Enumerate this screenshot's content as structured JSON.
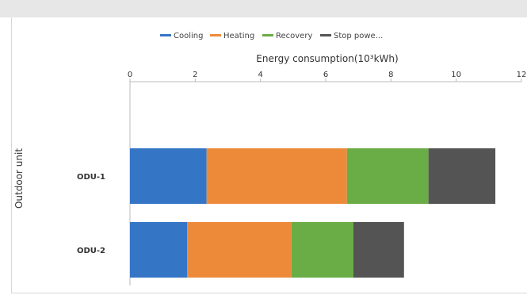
{
  "chart_data": {
    "type": "bar",
    "orientation": "horizontal",
    "stacked": true,
    "xlabel": "Energy consumption(10³kWh)",
    "ylabel": "Outdoor unit",
    "xlim": [
      0,
      12
    ],
    "xticks": [
      "0",
      "2",
      "4",
      "6",
      "8",
      "10",
      "12"
    ],
    "categories": [
      "ODU-1",
      "ODU-2"
    ],
    "legend_position": "top",
    "grid": false,
    "series": [
      {
        "name": "Cooling",
        "color": "#3575c6",
        "values": [
          2.35,
          1.75
        ]
      },
      {
        "name": "Heating",
        "color": "#ed8a3a",
        "values": [
          4.3,
          3.2
        ]
      },
      {
        "name": "Recovery",
        "color": "#6aac46",
        "values": [
          2.5,
          1.9
        ]
      },
      {
        "name": "Stop powe...",
        "color": "#545454",
        "values": [
          2.05,
          1.55
        ]
      }
    ]
  }
}
